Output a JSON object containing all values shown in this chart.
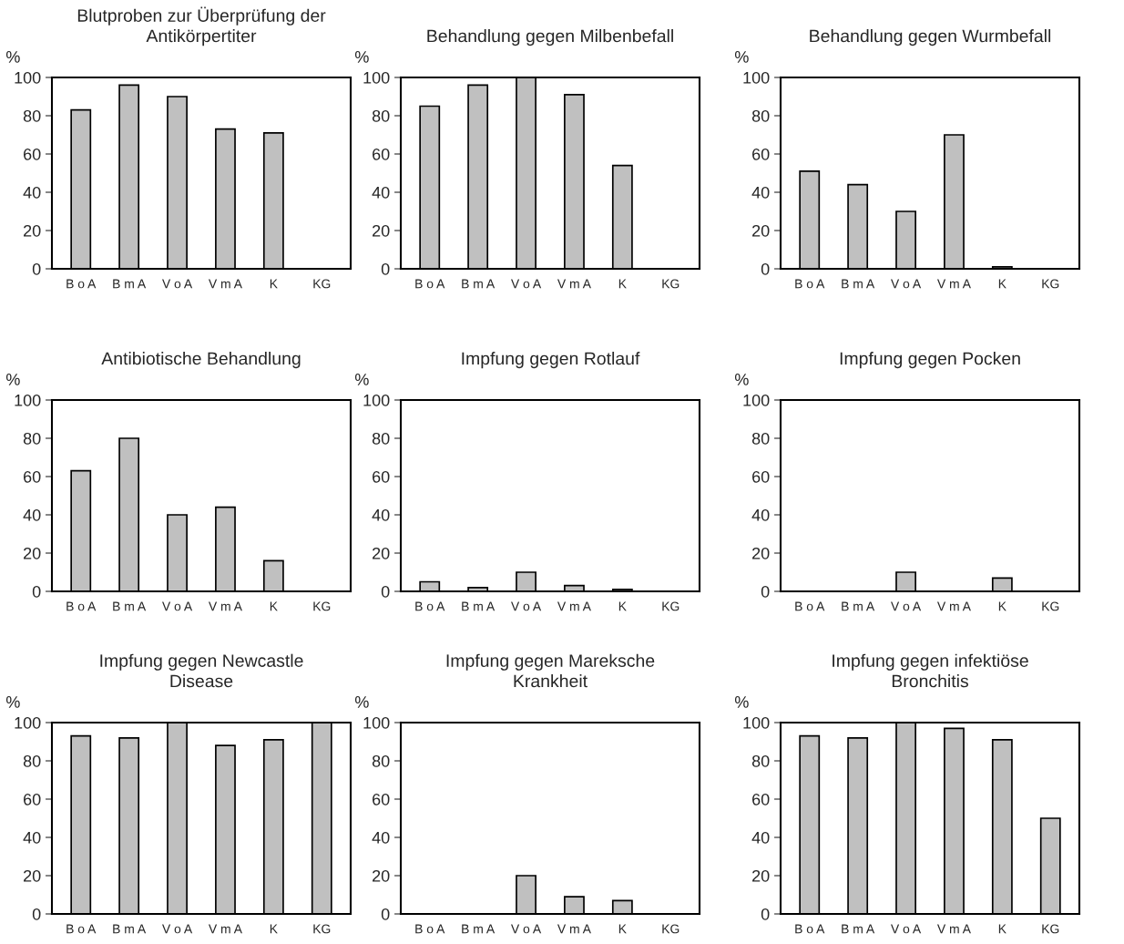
{
  "chart_data": [
    {
      "type": "bar",
      "title": "Blutproben zur Überprüfung der\nAntikörpertiter",
      "ylabel": "%",
      "categories": [
        "B o A",
        "B m A",
        "V o A",
        "V m A",
        "K",
        "KG"
      ],
      "values": [
        83,
        96,
        90,
        73,
        71,
        null
      ],
      "color": "#c0c0c0",
      "ylim": [
        0,
        100
      ],
      "yticks": [
        0,
        20,
        40,
        60,
        80,
        100
      ],
      "grid": false,
      "legend": false
    },
    {
      "type": "bar",
      "title": "Behandlung gegen Milbenbefall",
      "ylabel": "%",
      "categories": [
        "B o A",
        "B m A",
        "V o A",
        "V m A",
        "K",
        "KG"
      ],
      "values": [
        85,
        96,
        100,
        91,
        54,
        null
      ],
      "color": "#c0c0c0",
      "ylim": [
        0,
        100
      ],
      "yticks": [
        0,
        20,
        40,
        60,
        80,
        100
      ],
      "grid": false,
      "legend": false
    },
    {
      "type": "bar",
      "title": "Behandlung gegen Wurmbefall",
      "ylabel": "%",
      "categories": [
        "B o A",
        "B m A",
        "V o A",
        "V m A",
        "K",
        "KG"
      ],
      "values": [
        51,
        44,
        30,
        70,
        1,
        null
      ],
      "color": "#c0c0c0",
      "ylim": [
        0,
        100
      ],
      "yticks": [
        0,
        20,
        40,
        60,
        80,
        100
      ],
      "grid": false,
      "legend": false
    },
    {
      "type": "bar",
      "title": "Antibiotische Behandlung",
      "ylabel": "%",
      "categories": [
        "B o A",
        "B m A",
        "V o A",
        "V m A",
        "K",
        "KG"
      ],
      "values": [
        63,
        80,
        40,
        44,
        16,
        null
      ],
      "color": "#c0c0c0",
      "ylim": [
        0,
        100
      ],
      "yticks": [
        0,
        20,
        40,
        60,
        80,
        100
      ],
      "grid": false,
      "legend": false
    },
    {
      "type": "bar",
      "title": "Impfung gegen Rotlauf",
      "ylabel": "%",
      "categories": [
        "B o A",
        "B m A",
        "V o A",
        "V m A",
        "K",
        "KG"
      ],
      "values": [
        5,
        2,
        10,
        3,
        1,
        null
      ],
      "color": "#c0c0c0",
      "ylim": [
        0,
        100
      ],
      "yticks": [
        0,
        20,
        40,
        60,
        80,
        100
      ],
      "grid": false,
      "legend": false
    },
    {
      "type": "bar",
      "title": "Impfung gegen Pocken",
      "ylabel": "%",
      "categories": [
        "B o A",
        "B m A",
        "V o A",
        "V m A",
        "K",
        "KG"
      ],
      "values": [
        null,
        null,
        10,
        null,
        7,
        null
      ],
      "color": "#c0c0c0",
      "ylim": [
        0,
        100
      ],
      "yticks": [
        0,
        20,
        40,
        60,
        80,
        100
      ],
      "grid": false,
      "legend": false
    },
    {
      "type": "bar",
      "title": "Impfung gegen Newcastle\nDisease",
      "ylabel": "%",
      "categories": [
        "B o A",
        "B m A",
        "V o A",
        "V m A",
        "K",
        "KG"
      ],
      "values": [
        93,
        92,
        100,
        88,
        91,
        100
      ],
      "color": "#c0c0c0",
      "ylim": [
        0,
        100
      ],
      "yticks": [
        0,
        20,
        40,
        60,
        80,
        100
      ],
      "grid": false,
      "legend": false
    },
    {
      "type": "bar",
      "title": "Impfung gegen Mareksche\nKrankheit",
      "ylabel": "%",
      "categories": [
        "B o A",
        "B m A",
        "V o A",
        "V m A",
        "K",
        "KG"
      ],
      "values": [
        null,
        null,
        20,
        9,
        7,
        null
      ],
      "color": "#c0c0c0",
      "ylim": [
        0,
        100
      ],
      "yticks": [
        0,
        20,
        40,
        60,
        80,
        100
      ],
      "grid": false,
      "legend": false
    },
    {
      "type": "bar",
      "title": "Impfung gegen infektiöse\nBronchitis",
      "ylabel": "%",
      "categories": [
        "B o A",
        "B m A",
        "V o A",
        "V m A",
        "K",
        "KG"
      ],
      "values": [
        93,
        92,
        100,
        97,
        91,
        50
      ],
      "color": "#c0c0c0",
      "ylim": [
        0,
        100
      ],
      "yticks": [
        0,
        20,
        40,
        60,
        80,
        100
      ],
      "grid": false,
      "legend": false
    }
  ]
}
